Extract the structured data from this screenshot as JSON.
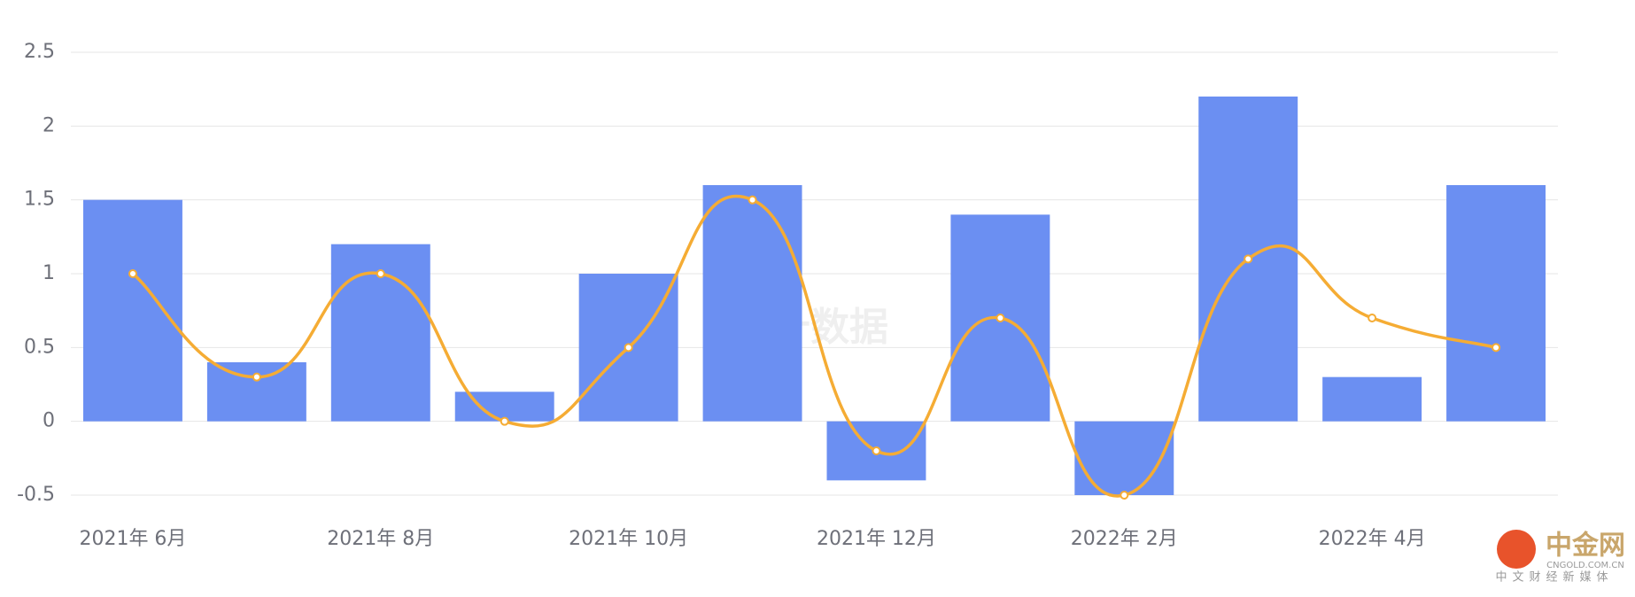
{
  "chart_data": {
    "type": "bar-line",
    "categories": [
      "2021年 6月",
      null,
      "2021年 8月",
      null,
      "2021年 10月",
      null,
      "2021年 12月",
      null,
      "2022年 2月",
      null,
      "2022年 4月",
      null
    ],
    "series": [
      {
        "type": "bar",
        "color": "#6b8ff2",
        "values": [
          1.5,
          0.4,
          1.2,
          0.2,
          1.0,
          1.6,
          -0.4,
          1.4,
          -0.5,
          2.2,
          0.3,
          1.6
        ]
      },
      {
        "type": "line",
        "color": "#f5ac34",
        "values": [
          1,
          0.3,
          1,
          0,
          0.5,
          1.5,
          -0.2,
          0.7,
          -0.5,
          1.1,
          0.7,
          0.5
        ]
      }
    ],
    "ylim": [
      -0.5,
      2.5
    ],
    "yticks": [
      -0.5,
      0,
      0.5,
      1,
      1.5,
      2,
      2.5
    ],
    "grid": true
  },
  "watermark": "金十数据",
  "logo": {
    "name": "中金网",
    "domain": "CNGOLD.COM.CN",
    "slogan": "中文财经新媒体"
  }
}
